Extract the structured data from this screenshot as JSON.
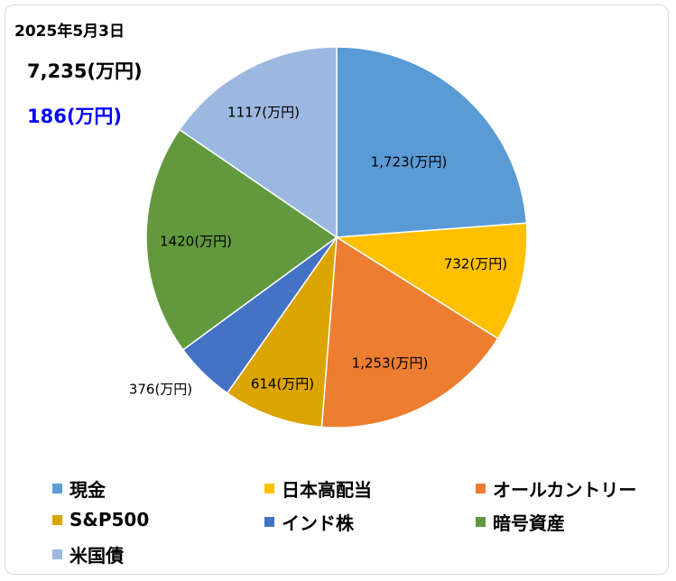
{
  "header": {
    "date": "2025年5月3日",
    "total": "7,235(万円)",
    "gain": "186(万円)",
    "gain_color": "#0000ff"
  },
  "chart_data": {
    "type": "pie",
    "start_angle_deg": 0,
    "direction": "clockwise",
    "slices": [
      {
        "name": "現金",
        "value": 1723,
        "label": "1,723(万円)",
        "color": "#5b9bd5"
      },
      {
        "name": "日本高配当",
        "value": 732,
        "label": "732(万円)",
        "color": "#ffc000"
      },
      {
        "name": "オールカントリー",
        "value": 1253,
        "label": "1,253(万円)",
        "color": "#ed7d31"
      },
      {
        "name": "S&P500",
        "value": 614,
        "label": "614(万円)",
        "color": "#dba400"
      },
      {
        "name": "インド株",
        "value": 376,
        "label": "376(万円)",
        "color": "#4472c4"
      },
      {
        "name": "暗号資産",
        "value": 1420,
        "label": "1420(万円)",
        "color": "#62993e"
      },
      {
        "name": "米国債",
        "value": 1117,
        "label": "1117(万円)",
        "color": "#9cb8e0"
      }
    ],
    "legend_position": "bottom"
  }
}
